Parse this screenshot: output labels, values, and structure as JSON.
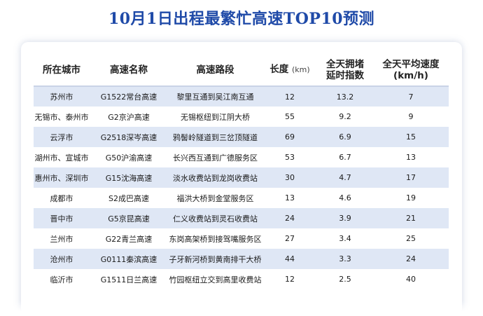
{
  "title": "10月1日出程最繁忙高速TOP10预测",
  "table": {
    "headers": {
      "city": "所在城市",
      "name": "高速名称",
      "section": "高速路段",
      "length_label": "长度",
      "length_unit": "(km)",
      "delay_line1": "全天拥堵",
      "delay_line2": "延时指数",
      "speed_line1": "全天平均速度",
      "speed_line2": "(km/h)"
    },
    "rows": [
      {
        "city": "苏州市",
        "name": "G1522常台高速",
        "section": "黎里互通到吴江南互通",
        "length": "12",
        "delay": "13.2",
        "speed": "7"
      },
      {
        "city": "无锡市、泰州市",
        "name": "G2京沪高速",
        "section": "无锡枢纽到江阴大桥",
        "length": "55",
        "delay": "9.2",
        "speed": "9"
      },
      {
        "city": "云浮市",
        "name": "G2518深岑高速",
        "section": "鸦髻岭隧道到三岔顶隧道",
        "length": "69",
        "delay": "6.9",
        "speed": "15"
      },
      {
        "city": "湖州市、宣城市",
        "name": "G50沪渝高速",
        "section": "长兴西互通到广德服务区",
        "length": "53",
        "delay": "6.7",
        "speed": "13"
      },
      {
        "city": "惠州市、深圳市",
        "name": "G15沈海高速",
        "section": "淡水收费站到龙岗收费站",
        "length": "30",
        "delay": "4.7",
        "speed": "17"
      },
      {
        "city": "成都市",
        "name": "S2成巴高速",
        "section": "福洪大桥到金堂服务区",
        "length": "13",
        "delay": "4.6",
        "speed": "19"
      },
      {
        "city": "晋中市",
        "name": "G5京昆高速",
        "section": "仁义收费站到灵石收费站",
        "length": "24",
        "delay": "3.9",
        "speed": "21"
      },
      {
        "city": "兰州市",
        "name": "G22青兰高速",
        "section": "东岗高架桥到接驾嘴服务区",
        "length": "27",
        "delay": "3.4",
        "speed": "25"
      },
      {
        "city": "沧州市",
        "name": "G0111秦滨高速",
        "section": "子牙新河桥到黄南排干大桥",
        "length": "44",
        "delay": "3.3",
        "speed": "24"
      },
      {
        "city": "临沂市",
        "name": "G1511日兰高速",
        "section": "竹园枢纽立交到高里收费站",
        "length": "12",
        "delay": "2.5",
        "speed": "40"
      }
    ]
  }
}
